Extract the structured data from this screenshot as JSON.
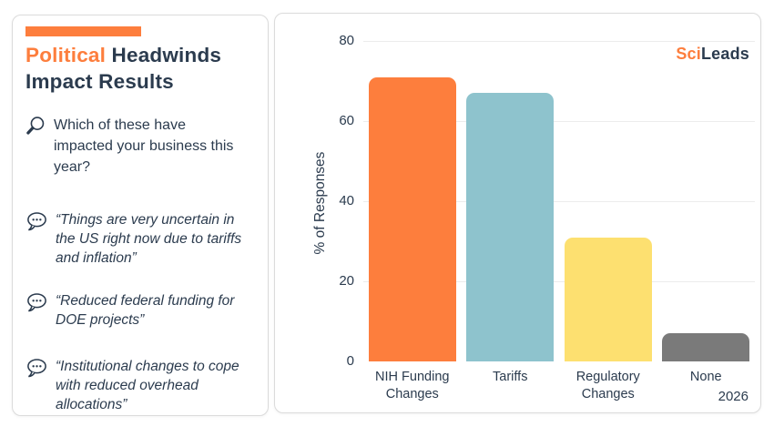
{
  "colors": {
    "accent": "#FD7E3D",
    "navy": "#2B3B4E",
    "border": "#DBDBDB",
    "grid": "#ECECEC"
  },
  "left_panel": {
    "title_accent": "Political",
    "title_rest": "Headwinds Impact Results",
    "question": "Which of these have impacted your business this year?",
    "quotes": [
      "“Things are very uncertain in the US right now due to tariffs and inflation”",
      "“Reduced federal funding for DOE projects”",
      "“Institutional changes to cope with reduced overhead allocations”"
    ]
  },
  "logo": {
    "prefix": "Sci",
    "suffix": "Leads"
  },
  "chart_data": {
    "type": "bar",
    "categories": [
      "NIH Funding Changes",
      "Tariffs",
      "Regulatory Changes",
      "None"
    ],
    "values": [
      71,
      67,
      31,
      7
    ],
    "bar_colors": [
      "#FD7E3D",
      "#8EC3CD",
      "#FDE070",
      "#7A7A7A"
    ],
    "title": "",
    "xlabel": "",
    "ylabel": "% of Responses",
    "ylim": [
      0,
      80
    ],
    "yticks": [
      0,
      20,
      40,
      60,
      80
    ],
    "grid": "horizontal",
    "legend": "none",
    "footer_year": "2026"
  }
}
